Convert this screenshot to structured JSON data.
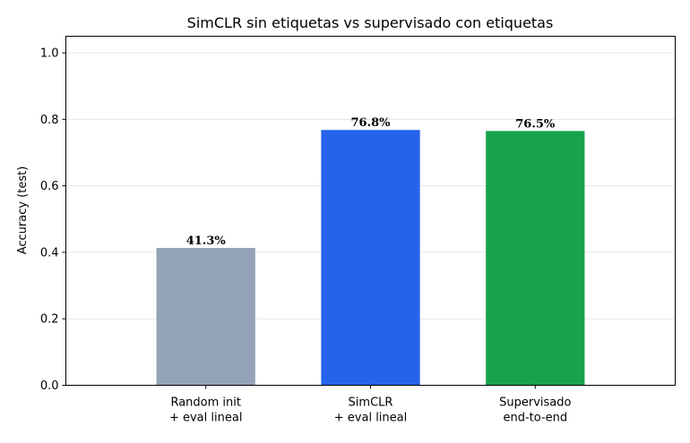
{
  "chart_data": {
    "type": "bar",
    "title": "SimCLR sin etiquetas vs supervisado con etiquetas",
    "xlabel": "",
    "ylabel": "Accuracy (test)",
    "ylim": [
      0,
      1.05
    ],
    "yticks": [
      0.0,
      0.2,
      0.4,
      0.6,
      0.8,
      1.0
    ],
    "ytick_labels": [
      "0.0",
      "0.2",
      "0.4",
      "0.6",
      "0.8",
      "1.0"
    ],
    "grid": "horizontal",
    "categories": [
      [
        "Random init",
        "+ eval lineal"
      ],
      [
        "SimCLR",
        "+ eval lineal"
      ],
      [
        "Supervisado",
        "end-to-end"
      ]
    ],
    "values": [
      0.413,
      0.768,
      0.765
    ],
    "data_labels": [
      "41.3%",
      "76.8%",
      "76.5%"
    ],
    "colors": [
      "#94a3b8",
      "#2563eb",
      "#16a34a"
    ]
  }
}
